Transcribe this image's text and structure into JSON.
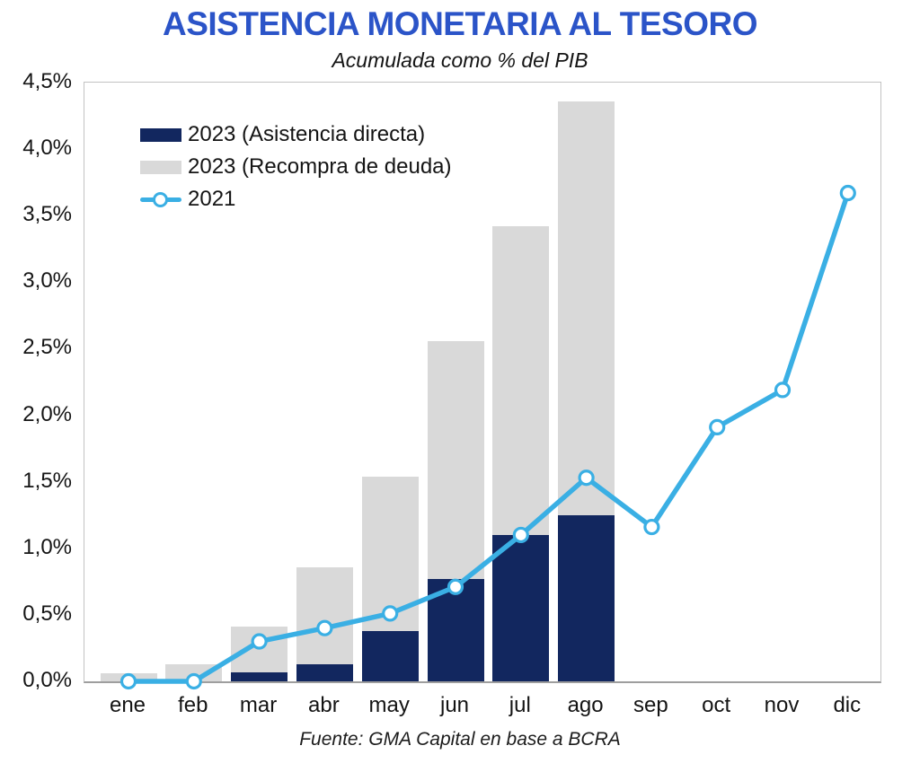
{
  "title": "ASISTENCIA MONETARIA AL TESORO",
  "subtitle": "Acumulada como % del PIB",
  "source_note": "Fuente: GMA Capital en base a BCRA",
  "colors": {
    "title_blue": "#2B54C8",
    "bar_navy": "#12275F",
    "bar_gray": "#D9D9D9",
    "line_blue": "#3AAFE4",
    "plot_border": "#C2C2C2",
    "axis_bottom": "#9E9E9E",
    "text": "#141414"
  },
  "chart_data": {
    "type": "combo",
    "title": "ASISTENCIA MONETARIA AL TESORO",
    "subtitle": "Acumulada como % del PIB",
    "categories": [
      "ene",
      "feb",
      "mar",
      "abr",
      "may",
      "jun",
      "jul",
      "ago",
      "sep",
      "oct",
      "nov",
      "dic"
    ],
    "series": [
      {
        "name": "2023 (Asistencia directa)",
        "type": "bar",
        "color": "#12275F",
        "values": [
          0,
          0,
          0.07,
          0.13,
          0.38,
          0.77,
          1.1,
          1.25,
          null,
          null,
          null,
          null
        ]
      },
      {
        "name": "2023 (Recompra de deuda)",
        "type": "bar",
        "color": "#D9D9D9",
        "values": [
          0.06,
          0.13,
          0.41,
          0.86,
          1.54,
          2.56,
          3.42,
          4.36,
          null,
          null,
          null,
          null
        ],
        "bar_top_meaning": "cumulative total (asistencia directa + recompra), drawn behind navy bars"
      },
      {
        "name": "2021",
        "type": "line",
        "color": "#3AAFE4",
        "marker": "white-circle",
        "values": [
          0.0,
          0.0,
          0.3,
          0.4,
          0.51,
          0.71,
          1.1,
          1.53,
          1.16,
          1.91,
          2.19,
          3.67
        ]
      }
    ],
    "y_ticks": {
      "values": [
        0,
        0.5,
        1.0,
        1.5,
        2.0,
        2.5,
        3.0,
        3.5,
        4.0,
        4.5
      ],
      "labels": [
        "0,0%",
        "0,5%",
        "1,0%",
        "1,5%",
        "2,0%",
        "2,5%",
        "3,0%",
        "3,5%",
        "4,0%",
        "4,5%"
      ]
    },
    "ylim": [
      0,
      4.5
    ],
    "unit": "% del PIB",
    "grid": false,
    "legend_position": "top-left-inside"
  }
}
